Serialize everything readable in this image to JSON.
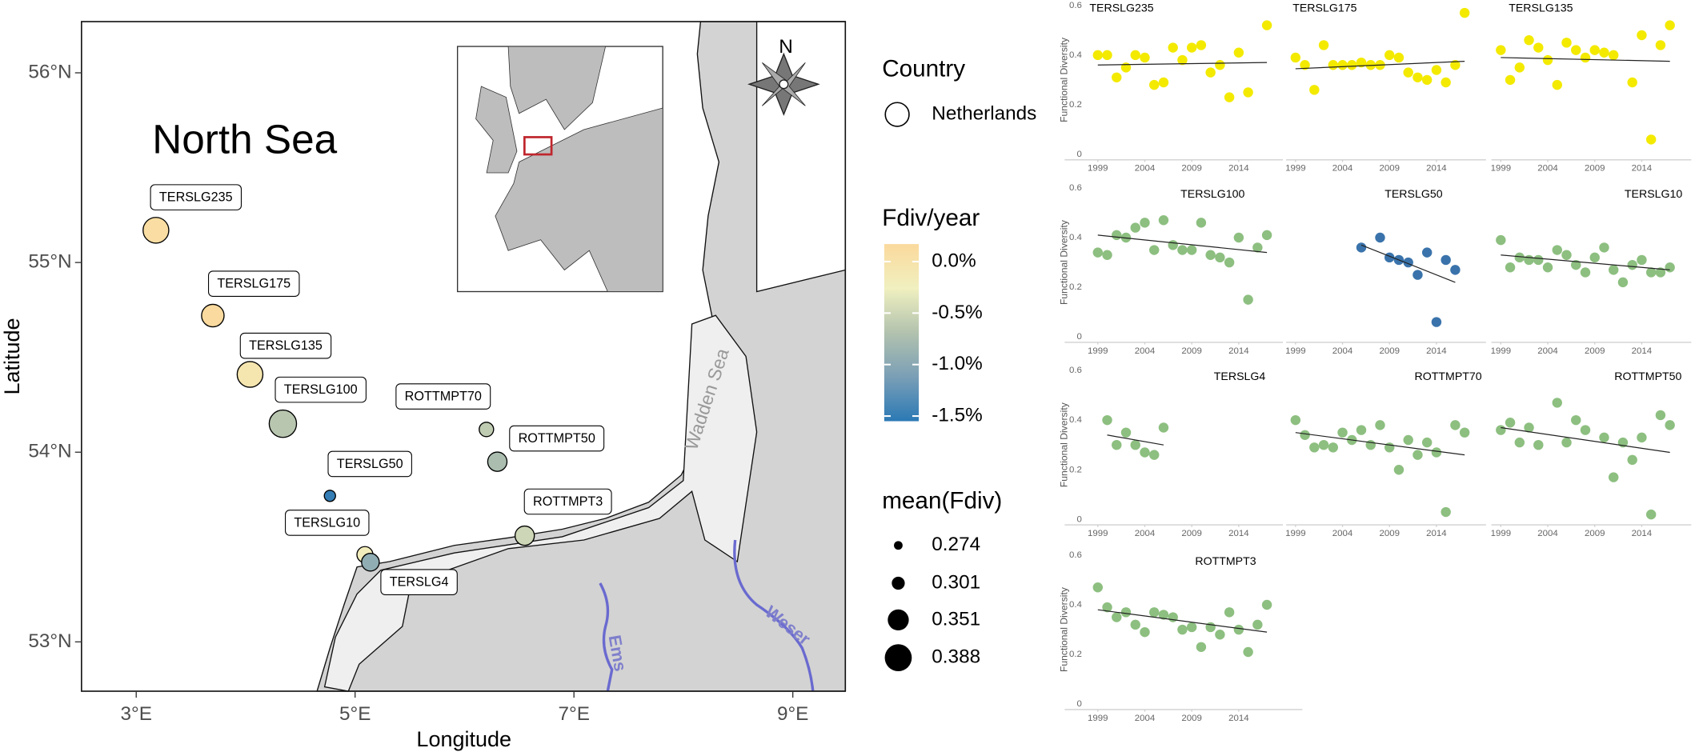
{
  "chart_data": [
    {
      "type": "map",
      "title": "North Sea",
      "xlabel": "Longitude",
      "ylabel": "Latitude",
      "xlim": [
        2.5,
        9.48
      ],
      "ylim": [
        52.74,
        56.27
      ],
      "xticks": [
        {
          "value": 3,
          "label": "3°E"
        },
        {
          "value": 5,
          "label": "5°E"
        },
        {
          "value": 7,
          "label": "7°E"
        },
        {
          "value": 9,
          "label": "9°E"
        }
      ],
      "yticks": [
        {
          "value": 53,
          "label": "53°N"
        },
        {
          "value": 54,
          "label": "54°N"
        },
        {
          "value": 55,
          "label": "55°N"
        },
        {
          "value": 56,
          "label": "56°N"
        }
      ],
      "north": "N",
      "annotations": [
        "Wadden Sea",
        "Ems",
        "Weser"
      ],
      "sites": {
        "names": [
          "TERSLG235",
          "TERSLG175",
          "TERSLG135",
          "TERSLG100",
          "TERSLG50",
          "TERSLG10",
          "TERSLG4",
          "ROTTMPT70",
          "ROTTMPT50",
          "ROTTMPT3"
        ],
        "lon": [
          3.18,
          3.7,
          4.04,
          4.34,
          4.77,
          5.09,
          5.14,
          6.2,
          6.3,
          6.55
        ],
        "lat": [
          55.17,
          54.72,
          54.41,
          54.15,
          53.77,
          53.46,
          53.42,
          54.12,
          53.95,
          53.56
        ],
        "fdiv_per_year": [
          0.1,
          0.15,
          -0.05,
          -0.65,
          -1.5,
          -0.2,
          -0.95,
          -0.6,
          -0.75,
          -0.5
        ],
        "mean_fdiv": [
          0.38,
          0.36,
          0.38,
          0.39,
          0.29,
          0.32,
          0.33,
          0.31,
          0.34,
          0.34
        ]
      },
      "legend": {
        "country": {
          "title": "Country",
          "entries": [
            "Netherlands"
          ]
        },
        "color": {
          "title": "Fdiv/year",
          "lim": [
            -1.55,
            0.17
          ],
          "ticks": [
            {
              "value": 0,
              "label": "0.0%"
            },
            {
              "value": -0.5,
              "label": "-0.5%"
            },
            {
              "value": -1,
              "label": "-1.0%"
            },
            {
              "value": -1.5,
              "label": "-1.5%"
            }
          ],
          "colors": [
            "#2b79b5",
            "#7a9fb6",
            "#b2c2ae",
            "#f0f0c0",
            "#fbd99c"
          ]
        },
        "size": {
          "title": "mean(Fdiv)",
          "values": [
            0.274,
            0.301,
            0.351,
            0.388
          ]
        }
      }
    },
    {
      "type": "scatter-facets",
      "ylabel": "Functional Diversity",
      "xlim": [
        1998,
        2018.7
      ],
      "ylim": [
        0,
        0.6
      ],
      "xticks": [
        1999,
        2004,
        2009,
        2014
      ],
      "yticks": [
        0,
        0.2,
        0.4,
        0.6
      ],
      "panels": [
        {
          "title": "TERSLG235",
          "color": "#f3ea00",
          "x": [
            1999,
            2000,
            2001,
            2002,
            2003,
            2004,
            2005,
            2006,
            2007,
            2008,
            2009,
            2010,
            2011,
            2012,
            2013,
            2014,
            2015,
            2017
          ],
          "values": [
            0.4,
            0.4,
            0.31,
            0.35,
            0.4,
            0.39,
            0.28,
            0.29,
            0.43,
            0.38,
            0.43,
            0.44,
            0.33,
            0.36,
            0.23,
            0.41,
            0.25,
            0.52
          ],
          "trend": [
            0.36,
            0.37
          ]
        },
        {
          "title": "TERSLG175",
          "color": "#f3ea00",
          "x": [
            1999,
            2000,
            2001,
            2002,
            2003,
            2004,
            2005,
            2006,
            2007,
            2008,
            2009,
            2010,
            2011,
            2012,
            2013,
            2014,
            2015,
            2016,
            2017
          ],
          "values": [
            0.39,
            0.36,
            0.26,
            0.44,
            0.36,
            0.36,
            0.36,
            0.37,
            0.36,
            0.36,
            0.4,
            0.39,
            0.33,
            0.31,
            0.3,
            0.34,
            0.29,
            0.36,
            0.57
          ],
          "trend": [
            0.345,
            0.375
          ]
        },
        {
          "title": "TERSLG135",
          "color": "#f3ea00",
          "x": [
            1999,
            2000,
            2001,
            2002,
            2003,
            2004,
            2005,
            2006,
            2007,
            2008,
            2009,
            2010,
            2011,
            2013,
            2014,
            2015,
            2016,
            2017
          ],
          "values": [
            0.42,
            0.3,
            0.35,
            0.46,
            0.43,
            0.38,
            0.28,
            0.45,
            0.42,
            0.39,
            0.42,
            0.41,
            0.4,
            0.29,
            0.48,
            0.06,
            0.44,
            0.52
          ],
          "trend": [
            0.39,
            0.375
          ]
        },
        {
          "title": "TERSLG100",
          "color": "#8dbf80",
          "x": [
            1999,
            2000,
            2001,
            2002,
            2003,
            2004,
            2005,
            2006,
            2007,
            2008,
            2009,
            2010,
            2011,
            2012,
            2013,
            2014,
            2015,
            2016,
            2017
          ],
          "values": [
            0.34,
            0.33,
            0.41,
            0.4,
            0.44,
            0.46,
            0.35,
            0.47,
            0.37,
            0.35,
            0.35,
            0.46,
            0.33,
            0.32,
            0.3,
            0.4,
            0.15,
            0.36,
            0.41
          ],
          "trend": [
            0.41,
            0.34
          ]
        },
        {
          "title": "TERSLG50",
          "color": "#3a73ab",
          "x": [
            2006,
            2008,
            2009,
            2010,
            2011,
            2012,
            2013,
            2014,
            2015,
            2016
          ],
          "values": [
            0.36,
            0.4,
            0.32,
            0.31,
            0.3,
            0.25,
            0.34,
            0.06,
            0.31,
            0.27
          ],
          "trend": [
            0.37,
            0.22
          ]
        },
        {
          "title": "TERSLG10",
          "color": "#8dbf80",
          "x": [
            1999,
            2000,
            2001,
            2002,
            2003,
            2004,
            2005,
            2006,
            2007,
            2008,
            2009,
            2010,
            2011,
            2012,
            2013,
            2014,
            2015,
            2016,
            2017
          ],
          "values": [
            0.39,
            0.28,
            0.32,
            0.31,
            0.31,
            0.28,
            0.35,
            0.33,
            0.29,
            0.26,
            0.32,
            0.36,
            0.27,
            0.22,
            0.29,
            0.31,
            0.26,
            0.26,
            0.28
          ],
          "trend": [
            0.33,
            0.27
          ]
        },
        {
          "title": "TERSLG4",
          "color": "#8dbf80",
          "x": [
            2000,
            2001,
            2002,
            2003,
            2004,
            2005,
            2006
          ],
          "values": [
            0.4,
            0.3,
            0.35,
            0.3,
            0.27,
            0.26,
            0.37
          ],
          "trend": [
            0.34,
            0.3
          ]
        },
        {
          "title": "ROTTMPT70",
          "color": "#8dbf80",
          "x": [
            1999,
            2000,
            2001,
            2002,
            2003,
            2004,
            2005,
            2006,
            2007,
            2008,
            2009,
            2010,
            2011,
            2012,
            2013,
            2014,
            2015,
            2016,
            2017
          ],
          "values": [
            0.4,
            0.34,
            0.29,
            0.3,
            0.29,
            0.35,
            0.32,
            0.36,
            0.3,
            0.38,
            0.29,
            0.2,
            0.32,
            0.26,
            0.31,
            0.27,
            0.03,
            0.38,
            0.35
          ],
          "trend": [
            0.35,
            0.26
          ]
        },
        {
          "title": "ROTTMPT50",
          "color": "#8dbf80",
          "x": [
            1999,
            2000,
            2001,
            2002,
            2003,
            2005,
            2006,
            2007,
            2008,
            2010,
            2011,
            2012,
            2013,
            2014,
            2015,
            2016,
            2017
          ],
          "values": [
            0.36,
            0.39,
            0.31,
            0.37,
            0.3,
            0.47,
            0.31,
            0.4,
            0.36,
            0.33,
            0.17,
            0.31,
            0.24,
            0.33,
            0.02,
            0.42,
            0.38
          ],
          "trend": [
            0.37,
            0.27
          ]
        },
        {
          "title": "ROTTMPT3",
          "color": "#8dbf80",
          "x": [
            1999,
            2000,
            2001,
            2002,
            2003,
            2004,
            2005,
            2006,
            2007,
            2008,
            2009,
            2010,
            2011,
            2012,
            2013,
            2014,
            2015,
            2016,
            2017
          ],
          "values": [
            0.47,
            0.39,
            0.35,
            0.37,
            0.32,
            0.29,
            0.37,
            0.36,
            0.35,
            0.3,
            0.31,
            0.23,
            0.31,
            0.28,
            0.37,
            0.3,
            0.21,
            0.32,
            0.4
          ],
          "trend": [
            0.38,
            0.29
          ]
        }
      ]
    }
  ]
}
